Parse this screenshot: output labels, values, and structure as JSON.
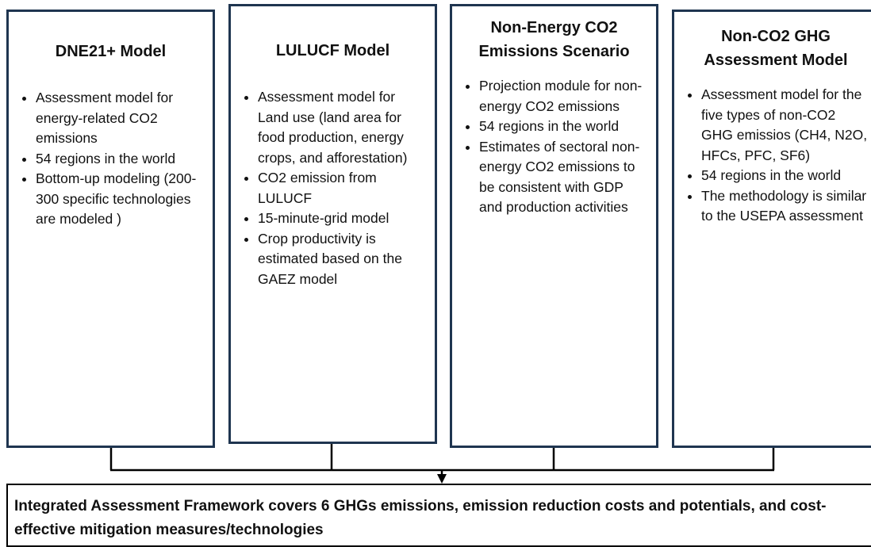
{
  "boxes": [
    {
      "title": "DNE21+ Model",
      "bullets": [
        "Assessment model for energy-related CO2 emissions",
        "54 regions in the world",
        "Bottom-up modeling (200-300 specific technologies are modeled )"
      ]
    },
    {
      "title": "LULUCF Model",
      "bullets": [
        "Assessment model for Land use (land area for food production, energy crops,  and afforestation)",
        "CO2 emission from LULUCF",
        "15-minute-grid model",
        "Crop productivity is estimated based on the GAEZ model"
      ]
    },
    {
      "title": "Non-Energy CO2 Emissions Scenario",
      "bullets": [
        "Projection module for non-energy CO2 emissions",
        "54 regions in the world",
        "Estimates of sectoral non-energy CO2 emissions to be consistent with GDP and production activities"
      ]
    },
    {
      "title": "Non-CO2 GHG Assessment Model",
      "bullets": [
        "Assessment model for the five types of non-CO2 GHG emissios (CH4, N2O, HFCs, PFC, SF6)",
        "54 regions in the world",
        "The methodology is similar to the USEPA assessment"
      ]
    }
  ],
  "framework": "Integrated Assessment Framework covers 6 GHGs emissions, emission reduction costs and potentials, and cost-effective mitigation measures/technologies"
}
